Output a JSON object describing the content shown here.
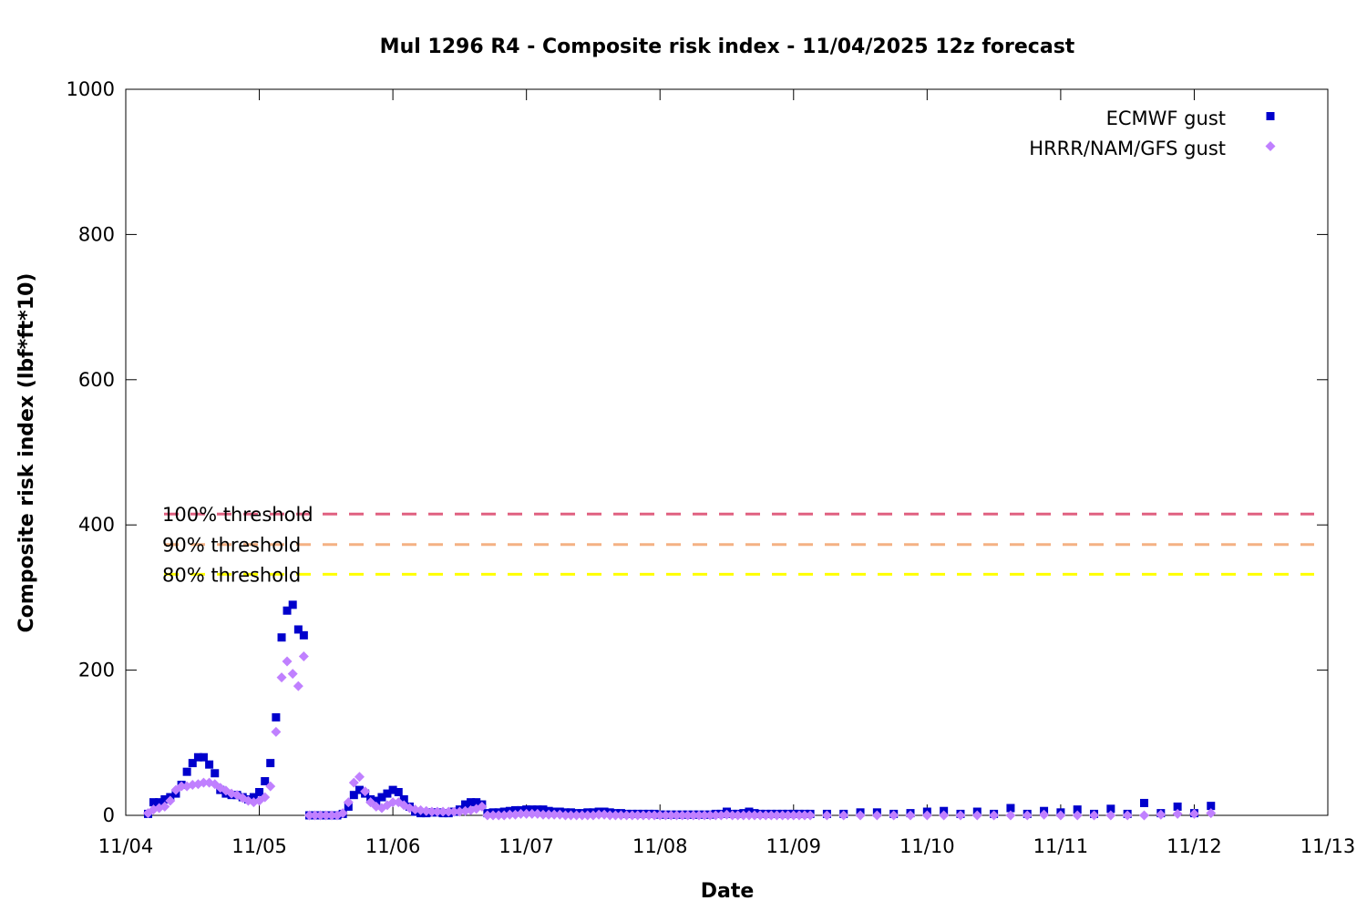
{
  "chart_data": {
    "type": "scatter",
    "title": "Mul 1296 R4 - Composite risk index - 11/04/2025 12z forecast",
    "xlabel": "Date",
    "ylabel": "Composite risk index (lbf*ft*10)",
    "xlim": [
      0,
      9
    ],
    "ylim": [
      0,
      1000
    ],
    "x_unit": "days after 11/04 00z",
    "x_ticks": [
      {
        "value": 0,
        "label": "11/04"
      },
      {
        "value": 1,
        "label": "11/05"
      },
      {
        "value": 2,
        "label": "11/06"
      },
      {
        "value": 3,
        "label": "11/07"
      },
      {
        "value": 4,
        "label": "11/08"
      },
      {
        "value": 5,
        "label": "11/09"
      },
      {
        "value": 6,
        "label": "11/10"
      },
      {
        "value": 7,
        "label": "11/11"
      },
      {
        "value": 8,
        "label": "11/12"
      },
      {
        "value": 9,
        "label": "11/13"
      }
    ],
    "y_ticks": [
      {
        "value": 0,
        "label": "0"
      },
      {
        "value": 200,
        "label": "200"
      },
      {
        "value": 400,
        "label": "400"
      },
      {
        "value": 600,
        "label": "600"
      },
      {
        "value": 800,
        "label": "800"
      },
      {
        "value": 1000,
        "label": "1000"
      }
    ],
    "grid": false,
    "legend_position": "top-right",
    "thresholds": [
      {
        "label": "100% threshold",
        "value": 415,
        "color": "#e06080"
      },
      {
        "label": "90% threshold",
        "value": 373,
        "color": "#f4b183"
      },
      {
        "label": "80% threshold",
        "value": 332,
        "color": "#ffff00"
      }
    ],
    "series": [
      {
        "name": "ECMWF gust",
        "marker": "square",
        "color": "#0000cc",
        "points": [
          [
            0.167,
            2
          ],
          [
            0.208,
            18
          ],
          [
            0.25,
            18
          ],
          [
            0.292,
            22
          ],
          [
            0.333,
            25
          ],
          [
            0.375,
            30
          ],
          [
            0.417,
            42
          ],
          [
            0.458,
            60
          ],
          [
            0.5,
            72
          ],
          [
            0.542,
            80
          ],
          [
            0.583,
            80
          ],
          [
            0.625,
            70
          ],
          [
            0.667,
            58
          ],
          [
            0.708,
            35
          ],
          [
            0.75,
            30
          ],
          [
            0.792,
            28
          ],
          [
            0.833,
            28
          ],
          [
            0.875,
            25
          ],
          [
            0.917,
            22
          ],
          [
            0.958,
            25
          ],
          [
            1.0,
            32
          ],
          [
            1.042,
            47
          ],
          [
            1.083,
            72
          ],
          [
            1.125,
            135
          ],
          [
            1.167,
            245
          ],
          [
            1.208,
            282
          ],
          [
            1.25,
            290
          ],
          [
            1.292,
            256
          ],
          [
            1.333,
            248
          ],
          [
            1.375,
            0
          ],
          [
            1.417,
            0
          ],
          [
            1.458,
            0
          ],
          [
            1.5,
            0
          ],
          [
            1.542,
            0
          ],
          [
            1.583,
            0
          ],
          [
            1.625,
            2
          ],
          [
            1.667,
            12
          ],
          [
            1.708,
            28
          ],
          [
            1.75,
            35
          ],
          [
            1.792,
            30
          ],
          [
            1.833,
            22
          ],
          [
            1.875,
            20
          ],
          [
            1.917,
            25
          ],
          [
            1.958,
            30
          ],
          [
            2.0,
            35
          ],
          [
            2.042,
            32
          ],
          [
            2.083,
            22
          ],
          [
            2.125,
            12
          ],
          [
            2.167,
            5
          ],
          [
            2.208,
            3
          ],
          [
            2.25,
            3
          ],
          [
            2.292,
            4
          ],
          [
            2.333,
            4
          ],
          [
            2.375,
            3
          ],
          [
            2.417,
            3
          ],
          [
            2.458,
            5
          ],
          [
            2.5,
            8
          ],
          [
            2.542,
            15
          ],
          [
            2.583,
            18
          ],
          [
            2.625,
            18
          ],
          [
            2.667,
            15
          ],
          [
            2.708,
            3
          ],
          [
            2.75,
            4
          ],
          [
            2.792,
            4
          ],
          [
            2.833,
            5
          ],
          [
            2.875,
            6
          ],
          [
            2.917,
            7
          ],
          [
            2.958,
            7
          ],
          [
            3.0,
            8
          ],
          [
            3.042,
            8
          ],
          [
            3.083,
            8
          ],
          [
            3.125,
            8
          ],
          [
            3.167,
            6
          ],
          [
            3.208,
            5
          ],
          [
            3.25,
            5
          ],
          [
            3.292,
            4
          ],
          [
            3.333,
            4
          ],
          [
            3.375,
            3
          ],
          [
            3.417,
            3
          ],
          [
            3.458,
            4
          ],
          [
            3.5,
            4
          ],
          [
            3.542,
            5
          ],
          [
            3.583,
            5
          ],
          [
            3.625,
            4
          ],
          [
            3.667,
            3
          ],
          [
            3.708,
            3
          ],
          [
            3.75,
            2
          ],
          [
            3.792,
            2
          ],
          [
            3.833,
            2
          ],
          [
            3.875,
            2
          ],
          [
            3.917,
            2
          ],
          [
            3.958,
            2
          ],
          [
            4.0,
            1
          ],
          [
            4.042,
            1
          ],
          [
            4.083,
            1
          ],
          [
            4.125,
            1
          ],
          [
            4.167,
            1
          ],
          [
            4.208,
            1
          ],
          [
            4.25,
            1
          ],
          [
            4.292,
            1
          ],
          [
            4.333,
            1
          ],
          [
            4.375,
            1
          ],
          [
            4.417,
            2
          ],
          [
            4.458,
            2
          ],
          [
            4.5,
            5
          ],
          [
            4.542,
            2
          ],
          [
            4.583,
            2
          ],
          [
            4.625,
            3
          ],
          [
            4.667,
            5
          ],
          [
            4.708,
            3
          ],
          [
            4.75,
            2
          ],
          [
            4.792,
            2
          ],
          [
            4.833,
            2
          ],
          [
            4.875,
            2
          ],
          [
            4.917,
            2
          ],
          [
            4.958,
            2
          ],
          [
            5.0,
            2
          ],
          [
            5.042,
            2
          ],
          [
            5.083,
            2
          ],
          [
            5.125,
            2
          ],
          [
            5.25,
            2
          ],
          [
            5.375,
            2
          ],
          [
            5.5,
            4
          ],
          [
            5.625,
            4
          ],
          [
            5.75,
            2
          ],
          [
            5.875,
            3
          ],
          [
            6.0,
            5
          ],
          [
            6.125,
            6
          ],
          [
            6.25,
            2
          ],
          [
            6.375,
            5
          ],
          [
            6.5,
            2
          ],
          [
            6.625,
            10
          ],
          [
            6.75,
            2
          ],
          [
            6.875,
            6
          ],
          [
            7.0,
            4
          ],
          [
            7.125,
            8
          ],
          [
            7.25,
            2
          ],
          [
            7.375,
            9
          ],
          [
            7.5,
            2
          ],
          [
            7.625,
            17
          ],
          [
            7.75,
            3
          ],
          [
            7.875,
            12
          ],
          [
            8.0,
            3
          ],
          [
            8.125,
            13
          ]
        ]
      },
      {
        "name": "HRRR/NAM/GFS gust",
        "marker": "diamond",
        "color": "#c080ff",
        "points": [
          [
            0.167,
            3
          ],
          [
            0.208,
            8
          ],
          [
            0.25,
            10
          ],
          [
            0.292,
            12
          ],
          [
            0.333,
            20
          ],
          [
            0.375,
            35
          ],
          [
            0.417,
            40
          ],
          [
            0.458,
            40
          ],
          [
            0.5,
            42
          ],
          [
            0.542,
            43
          ],
          [
            0.583,
            45
          ],
          [
            0.625,
            45
          ],
          [
            0.667,
            43
          ],
          [
            0.708,
            38
          ],
          [
            0.75,
            34
          ],
          [
            0.792,
            30
          ],
          [
            0.833,
            28
          ],
          [
            0.875,
            24
          ],
          [
            0.917,
            20
          ],
          [
            0.958,
            18
          ],
          [
            1.0,
            20
          ],
          [
            1.042,
            25
          ],
          [
            1.083,
            40
          ],
          [
            1.125,
            115
          ],
          [
            1.167,
            190
          ],
          [
            1.208,
            212
          ],
          [
            1.25,
            195
          ],
          [
            1.292,
            178
          ],
          [
            1.333,
            219
          ],
          [
            1.375,
            0
          ],
          [
            1.417,
            0
          ],
          [
            1.458,
            0
          ],
          [
            1.5,
            0
          ],
          [
            1.542,
            0
          ],
          [
            1.583,
            0
          ],
          [
            1.625,
            3
          ],
          [
            1.667,
            18
          ],
          [
            1.708,
            45
          ],
          [
            1.75,
            53
          ],
          [
            1.792,
            33
          ],
          [
            1.833,
            18
          ],
          [
            1.875,
            12
          ],
          [
            1.917,
            10
          ],
          [
            1.958,
            14
          ],
          [
            2.0,
            18
          ],
          [
            2.042,
            18
          ],
          [
            2.083,
            14
          ],
          [
            2.125,
            10
          ],
          [
            2.167,
            8
          ],
          [
            2.208,
            7
          ],
          [
            2.25,
            6
          ],
          [
            2.292,
            5
          ],
          [
            2.333,
            5
          ],
          [
            2.375,
            5
          ],
          [
            2.417,
            5
          ],
          [
            2.458,
            5
          ],
          [
            2.5,
            5
          ],
          [
            2.542,
            6
          ],
          [
            2.583,
            7
          ],
          [
            2.625,
            9
          ],
          [
            2.667,
            12
          ],
          [
            2.708,
            0
          ],
          [
            2.75,
            0
          ],
          [
            2.792,
            0
          ],
          [
            2.833,
            0
          ],
          [
            2.875,
            1
          ],
          [
            2.917,
            1
          ],
          [
            2.958,
            2
          ],
          [
            3.0,
            2
          ],
          [
            3.042,
            2
          ],
          [
            3.083,
            2
          ],
          [
            3.125,
            1
          ],
          [
            3.167,
            1
          ],
          [
            3.208,
            1
          ],
          [
            3.25,
            1
          ],
          [
            3.292,
            0
          ],
          [
            3.333,
            0
          ],
          [
            3.375,
            0
          ],
          [
            3.417,
            0
          ],
          [
            3.458,
            0
          ],
          [
            3.5,
            0
          ],
          [
            3.542,
            1
          ],
          [
            3.583,
            1
          ],
          [
            3.625,
            0
          ],
          [
            3.667,
            0
          ],
          [
            3.708,
            0
          ],
          [
            3.75,
            0
          ],
          [
            3.792,
            0
          ],
          [
            3.833,
            0
          ],
          [
            3.875,
            0
          ],
          [
            3.917,
            0
          ],
          [
            3.958,
            0
          ],
          [
            4.0,
            0
          ],
          [
            4.042,
            0
          ],
          [
            4.083,
            0
          ],
          [
            4.125,
            0
          ],
          [
            4.167,
            0
          ],
          [
            4.208,
            0
          ],
          [
            4.25,
            0
          ],
          [
            4.292,
            0
          ],
          [
            4.333,
            0
          ],
          [
            4.375,
            0
          ],
          [
            4.417,
            0
          ],
          [
            4.458,
            0
          ],
          [
            4.5,
            1
          ],
          [
            4.542,
            0
          ],
          [
            4.583,
            0
          ],
          [
            4.625,
            0
          ],
          [
            4.667,
            0
          ],
          [
            4.708,
            0
          ],
          [
            4.75,
            0
          ],
          [
            4.792,
            0
          ],
          [
            4.833,
            0
          ],
          [
            4.875,
            0
          ],
          [
            4.917,
            0
          ],
          [
            4.958,
            0
          ],
          [
            5.0,
            0
          ],
          [
            5.042,
            0
          ],
          [
            5.083,
            0
          ],
          [
            5.125,
            0
          ],
          [
            5.25,
            0
          ],
          [
            5.375,
            0
          ],
          [
            5.5,
            0
          ],
          [
            5.625,
            0
          ],
          [
            5.75,
            0
          ],
          [
            5.875,
            0
          ],
          [
            6.0,
            0
          ],
          [
            6.125,
            0
          ],
          [
            6.25,
            0
          ],
          [
            6.375,
            0
          ],
          [
            6.5,
            0
          ],
          [
            6.625,
            0
          ],
          [
            6.75,
            0
          ],
          [
            6.875,
            1
          ],
          [
            7.0,
            0
          ],
          [
            7.125,
            0
          ],
          [
            7.25,
            0
          ],
          [
            7.375,
            0
          ],
          [
            7.5,
            0
          ],
          [
            7.625,
            0
          ],
          [
            7.75,
            1
          ],
          [
            7.875,
            2
          ],
          [
            8.0,
            2
          ],
          [
            8.125,
            3
          ]
        ]
      }
    ]
  }
}
